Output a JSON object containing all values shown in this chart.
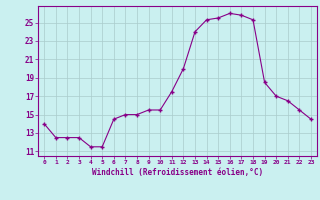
{
  "hours": [
    0,
    1,
    2,
    3,
    4,
    5,
    6,
    7,
    8,
    9,
    10,
    11,
    12,
    13,
    14,
    15,
    16,
    17,
    18,
    19,
    20,
    21,
    22,
    23
  ],
  "temps": [
    14.0,
    12.5,
    12.5,
    12.5,
    11.5,
    11.5,
    14.5,
    15.0,
    15.0,
    15.5,
    15.5,
    17.5,
    20.0,
    24.0,
    25.3,
    25.5,
    26.0,
    25.8,
    25.3,
    18.5,
    17.0,
    16.5,
    15.5,
    14.5
  ],
  "line_color": "#880088",
  "marker": "+",
  "bg_color": "#caf0f0",
  "grid_color": "#aacccc",
  "xlabel": "Windchill (Refroidissement éolien,°C)",
  "ylim_min": 10.5,
  "ylim_max": 26.8,
  "yticks": [
    11,
    13,
    15,
    17,
    19,
    21,
    23,
    25
  ],
  "xticks": [
    0,
    1,
    2,
    3,
    4,
    5,
    6,
    7,
    8,
    9,
    10,
    11,
    12,
    13,
    14,
    15,
    16,
    17,
    18,
    19,
    20,
    21,
    22,
    23
  ],
  "axis_color": "#880088",
  "font_color": "#880088"
}
